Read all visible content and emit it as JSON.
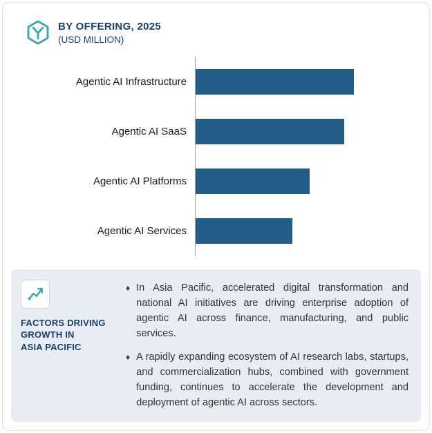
{
  "header": {
    "title": "BY OFFERING, 2025",
    "subtitle": "(USD MILLION)"
  },
  "chart_data": {
    "type": "bar",
    "orientation": "horizontal",
    "title": "BY OFFERING, 2025",
    "subtitle": "(USD MILLION)",
    "categories": [
      "Agentic AI Infrastructure",
      "Agentic AI SaaS",
      "Agentic AI Platforms",
      "Agentic AI Services"
    ],
    "values": [
      100,
      94,
      72,
      61
    ],
    "xlim": [
      0,
      100
    ],
    "axis_tick_labels_visible": false,
    "grid": false,
    "legend": false,
    "bar_color": "#235d88"
  },
  "insights": {
    "heading_lines": [
      "FACTORS DRIVING",
      "GROWTH IN",
      "ASIA PACIFIC"
    ],
    "bullet_marker": "♦",
    "bullets": [
      {
        "text": "In Asia Pacific, accelerated digital transformation and national AI initiatives are driving enterprise adoption of agentic AI across finance, manufacturing, and public services."
      },
      {
        "text": "A rapidly expanding ecosystem of AI research labs, startups, and commercialization hubs, combined with government funding, continues to accelerate the development and deployment of agentic AI across sectors."
      }
    ]
  },
  "colors": {
    "accent_teal": "#35a7b5",
    "navy": "#1b3f6e",
    "bar": "#235d88",
    "panel_bg": "#e8ecf3"
  }
}
